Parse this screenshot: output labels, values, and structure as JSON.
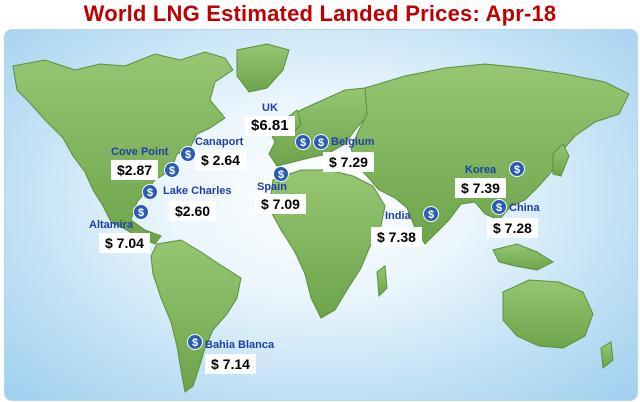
{
  "title": "World LNG Estimated Landed Prices: Apr-18",
  "icon": "dollar-coin-icon",
  "colors": {
    "title": "#c00000",
    "label": "#1f3fa8",
    "land": "#7fb55a",
    "ocean": "#bfe0f5"
  },
  "locations": [
    {
      "name": "UK",
      "price": "$6.81"
    },
    {
      "name": "Belgium",
      "price": "$  7.29"
    },
    {
      "name": "Cove Point",
      "price": "$2.87"
    },
    {
      "name": "Canaport",
      "price": "$  2.64"
    },
    {
      "name": "Lake Charles",
      "price": "$2.60"
    },
    {
      "name": "Spain",
      "price": "$  7.09"
    },
    {
      "name": "Altamira",
      "price": "$  7.04"
    },
    {
      "name": "Korea",
      "price": "$  7.39"
    },
    {
      "name": "China",
      "price": "$  7.28"
    },
    {
      "name": "India",
      "price": "$  7.38"
    },
    {
      "name": "Bahia Blanca",
      "price": "$  7.14"
    }
  ]
}
